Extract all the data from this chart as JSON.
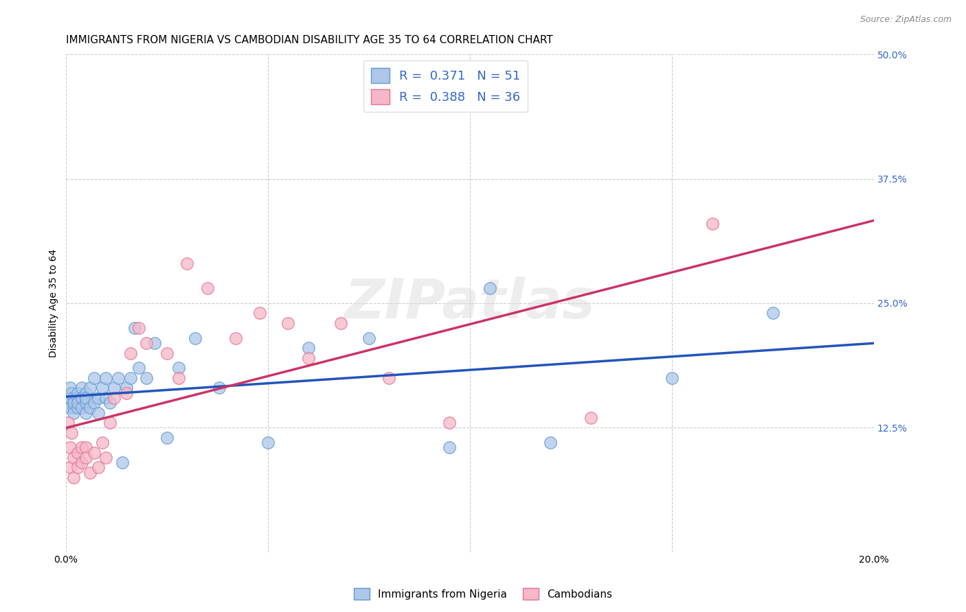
{
  "title": "IMMIGRANTS FROM NIGERIA VS CAMBODIAN DISABILITY AGE 35 TO 64 CORRELATION CHART",
  "source": "Source: ZipAtlas.com",
  "ylabel": "Disability Age 35 to 64",
  "xlim": [
    0.0,
    0.2
  ],
  "ylim": [
    0.0,
    0.5
  ],
  "xticks": [
    0.0,
    0.05,
    0.1,
    0.15,
    0.2
  ],
  "xticklabels": [
    "0.0%",
    "",
    "",
    "",
    "20.0%"
  ],
  "yticks_right": [
    0.0,
    0.125,
    0.25,
    0.375,
    0.5
  ],
  "ytick_right_labels": [
    "",
    "12.5%",
    "25.0%",
    "37.5%",
    "50.0%"
  ],
  "blue_fill": "#aec6e8",
  "blue_edge": "#5b9bd5",
  "pink_fill": "#f4b8c8",
  "pink_edge": "#e87090",
  "blue_line_color": "#2255bb",
  "pink_line_color": "#cc3366",
  "background_color": "#ffffff",
  "grid_color": "#cccccc",
  "legend_r_n_color": "#3366cc",
  "watermark": "ZIPatlas",
  "nigeria_x": [
    0.0005,
    0.001,
    0.001,
    0.001,
    0.0015,
    0.002,
    0.002,
    0.002,
    0.002,
    0.003,
    0.003,
    0.003,
    0.003,
    0.004,
    0.004,
    0.004,
    0.005,
    0.005,
    0.005,
    0.005,
    0.006,
    0.006,
    0.007,
    0.007,
    0.008,
    0.008,
    0.009,
    0.01,
    0.01,
    0.011,
    0.012,
    0.013,
    0.014,
    0.015,
    0.016,
    0.017,
    0.018,
    0.02,
    0.022,
    0.025,
    0.028,
    0.032,
    0.038,
    0.05,
    0.06,
    0.075,
    0.095,
    0.105,
    0.12,
    0.15,
    0.175
  ],
  "nigeria_y": [
    0.155,
    0.165,
    0.145,
    0.155,
    0.16,
    0.145,
    0.155,
    0.14,
    0.15,
    0.155,
    0.16,
    0.145,
    0.15,
    0.145,
    0.165,
    0.155,
    0.16,
    0.15,
    0.14,
    0.155,
    0.165,
    0.145,
    0.175,
    0.15,
    0.14,
    0.155,
    0.165,
    0.155,
    0.175,
    0.15,
    0.165,
    0.175,
    0.09,
    0.165,
    0.175,
    0.225,
    0.185,
    0.175,
    0.21,
    0.115,
    0.185,
    0.215,
    0.165,
    0.11,
    0.205,
    0.215,
    0.105,
    0.265,
    0.11,
    0.175,
    0.24
  ],
  "cambodian_x": [
    0.0005,
    0.001,
    0.001,
    0.0015,
    0.002,
    0.002,
    0.003,
    0.003,
    0.004,
    0.004,
    0.005,
    0.005,
    0.006,
    0.007,
    0.008,
    0.009,
    0.01,
    0.011,
    0.012,
    0.015,
    0.016,
    0.018,
    0.02,
    0.025,
    0.028,
    0.03,
    0.035,
    0.042,
    0.048,
    0.055,
    0.06,
    0.068,
    0.08,
    0.095,
    0.13,
    0.16
  ],
  "cambodian_y": [
    0.13,
    0.105,
    0.085,
    0.12,
    0.095,
    0.075,
    0.1,
    0.085,
    0.105,
    0.09,
    0.105,
    0.095,
    0.08,
    0.1,
    0.085,
    0.11,
    0.095,
    0.13,
    0.155,
    0.16,
    0.2,
    0.225,
    0.21,
    0.2,
    0.175,
    0.29,
    0.265,
    0.215,
    0.24,
    0.23,
    0.195,
    0.23,
    0.175,
    0.13,
    0.135,
    0.33
  ],
  "title_fontsize": 11,
  "axis_label_fontsize": 10,
  "tick_fontsize": 10
}
